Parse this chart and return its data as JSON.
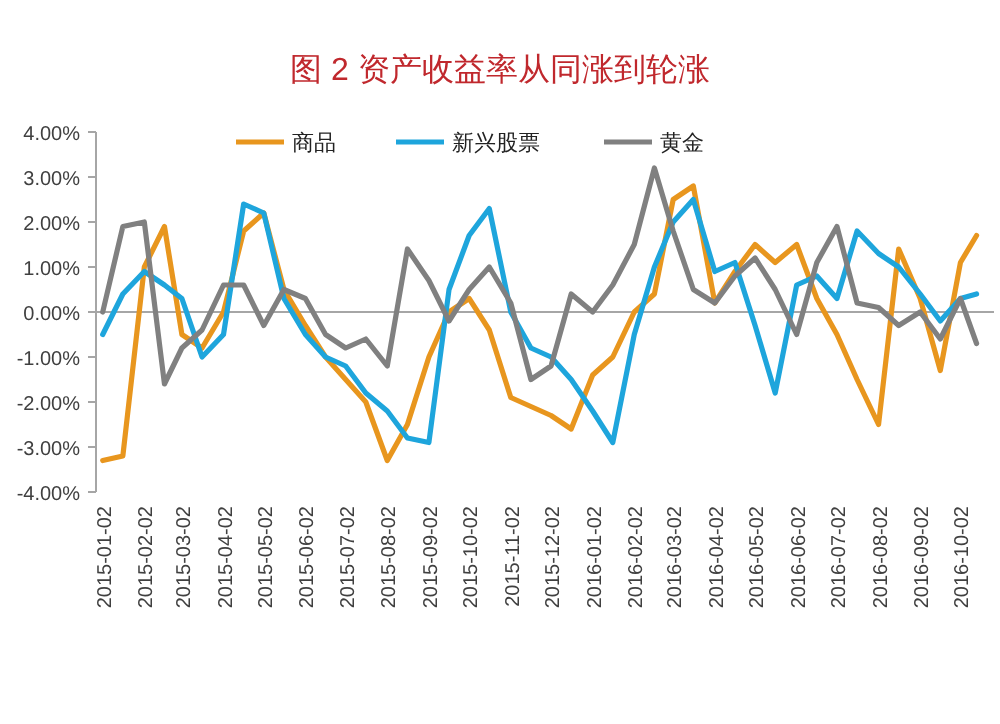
{
  "chart_data": {
    "type": "line",
    "title": "图 2 资产收益率从同涨到轮涨",
    "x": [
      "2015-01-02",
      "2015-01-17",
      "2015-02-02",
      "2015-02-17",
      "2015-03-02",
      "2015-03-17",
      "2015-04-02",
      "2015-04-17",
      "2015-05-02",
      "2015-05-17",
      "2015-06-02",
      "2015-06-17",
      "2015-07-02",
      "2015-07-17",
      "2015-08-02",
      "2015-08-17",
      "2015-09-02",
      "2015-09-17",
      "2015-10-02",
      "2015-10-17",
      "2015-11-02",
      "2015-11-17",
      "2015-12-02",
      "2015-12-17",
      "2016-01-02",
      "2016-01-17",
      "2016-02-02",
      "2016-02-17",
      "2016-03-02",
      "2016-03-17",
      "2016-04-02",
      "2016-04-17",
      "2016-05-02",
      "2016-05-17",
      "2016-06-02",
      "2016-06-17",
      "2016-07-02",
      "2016-07-17",
      "2016-08-02",
      "2016-08-17",
      "2016-09-02",
      "2016-09-17",
      "2016-10-02",
      "2016-10-14"
    ],
    "series": [
      {
        "name": "商品",
        "color": "#e8961e",
        "values": [
          -3.3,
          -3.2,
          1.0,
          1.9,
          -0.5,
          -0.8,
          0.0,
          1.8,
          2.2,
          0.5,
          -0.3,
          -1.0,
          -1.5,
          -2.0,
          -3.3,
          -2.5,
          -1.0,
          0.0,
          0.3,
          -0.4,
          -1.9,
          -2.1,
          -2.3,
          -2.6,
          -1.4,
          -1.0,
          0.0,
          0.4,
          2.5,
          2.8,
          0.2,
          0.9,
          1.5,
          1.1,
          1.5,
          0.3,
          -0.5,
          -1.5,
          -2.5,
          1.4,
          0.3,
          -1.3,
          1.1,
          1.7
        ]
      },
      {
        "name": "新兴股票",
        "color": "#1ea5dc",
        "values": [
          -0.5,
          0.4,
          0.9,
          0.6,
          0.3,
          -1.0,
          -0.5,
          2.4,
          2.2,
          0.3,
          -0.5,
          -1.0,
          -1.2,
          -1.8,
          -2.2,
          -2.8,
          -2.9,
          0.5,
          1.7,
          2.3,
          0.0,
          -0.8,
          -1.0,
          -1.5,
          -2.2,
          -2.9,
          -0.5,
          1.0,
          2.0,
          2.5,
          0.9,
          1.1,
          -0.3,
          -1.8,
          0.6,
          0.8,
          0.3,
          1.8,
          1.3,
          1.0,
          0.4,
          -0.2,
          0.3,
          0.4
        ]
      },
      {
        "name": "黄金",
        "color": "#808080",
        "values": [
          0.0,
          1.9,
          2.0,
          -1.6,
          -0.8,
          -0.4,
          0.6,
          0.6,
          -0.3,
          0.5,
          0.3,
          -0.5,
          -0.8,
          -0.6,
          -1.2,
          1.4,
          0.7,
          -0.2,
          0.5,
          1.0,
          0.2,
          -1.5,
          -1.2,
          0.4,
          0.0,
          0.6,
          1.5,
          3.2,
          1.8,
          0.5,
          0.2,
          0.8,
          1.2,
          0.5,
          -0.5,
          1.1,
          1.9,
          0.2,
          0.1,
          -0.3,
          0.0,
          -0.6,
          0.3,
          -0.7
        ]
      }
    ],
    "xlim": [
      "2014-12-28",
      "2016-10-27"
    ],
    "xticks": [
      "2015-01-02",
      "2015-02-02",
      "2015-03-02",
      "2015-04-02",
      "2015-05-02",
      "2015-06-02",
      "2015-07-02",
      "2015-08-02",
      "2015-09-02",
      "2015-10-02",
      "2015-11-02",
      "2015-12-02",
      "2016-01-02",
      "2016-02-02",
      "2016-03-02",
      "2016-04-02",
      "2016-05-02",
      "2016-06-02",
      "2016-07-02",
      "2016-08-02",
      "2016-09-02",
      "2016-10-02"
    ],
    "ylim": [
      -4,
      4
    ],
    "yticks": [
      {
        "value": -4,
        "label": "-4.00%"
      },
      {
        "value": -3,
        "label": "-3.00%"
      },
      {
        "value": -2,
        "label": "-2.00%"
      },
      {
        "value": -1,
        "label": "-1.00%"
      },
      {
        "value": 0,
        "label": "0.00%"
      },
      {
        "value": 1,
        "label": "1.00%"
      },
      {
        "value": 2,
        "label": "2.00%"
      },
      {
        "value": 3,
        "label": "3.00%"
      },
      {
        "value": 4,
        "label": "4.00%"
      }
    ],
    "ref_lines": [
      {
        "axis": "y",
        "value": 0,
        "color": "#a6a6a6"
      }
    ],
    "grid": false,
    "legend": "top",
    "marker": "none",
    "line_style": "solid"
  }
}
